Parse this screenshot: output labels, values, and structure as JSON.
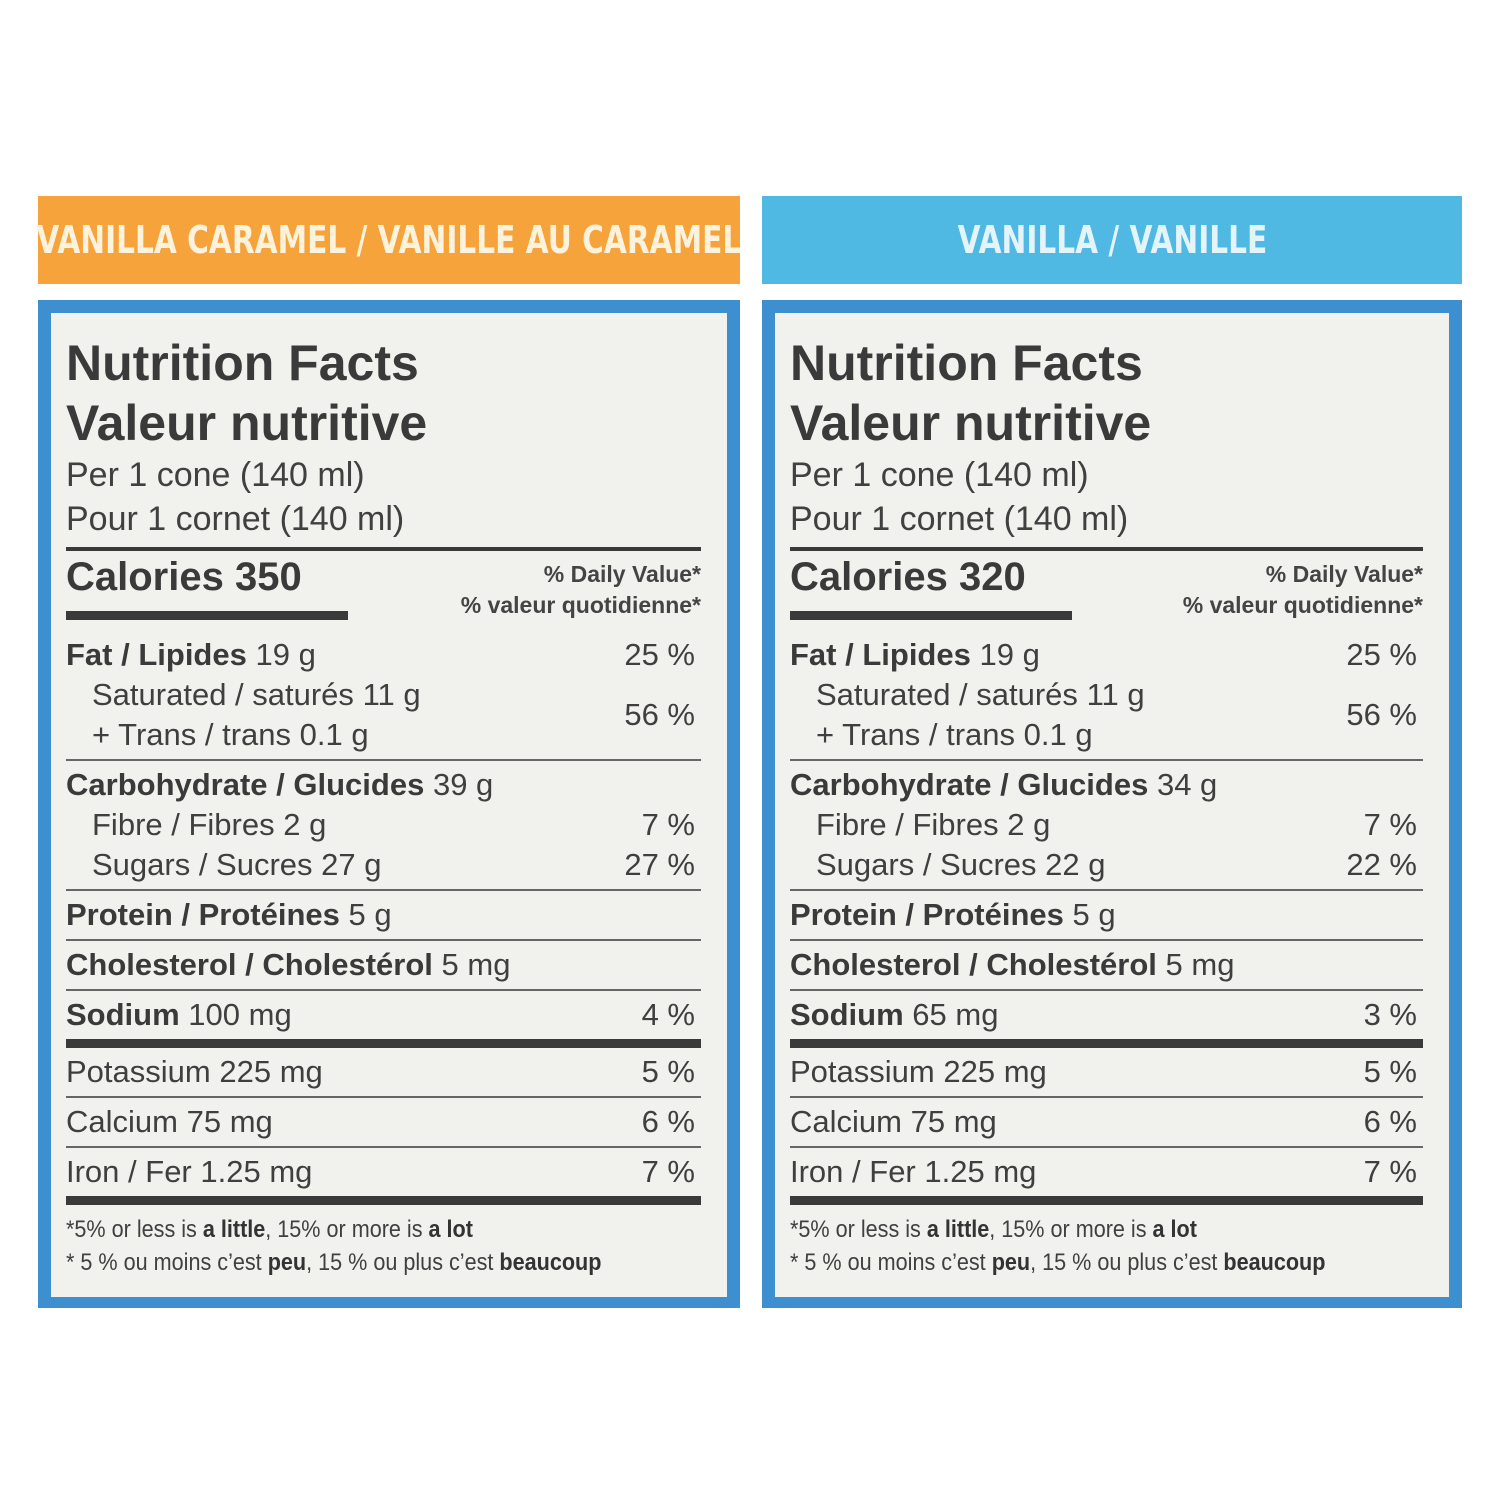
{
  "banners": {
    "left": "VANILLA CARAMEL / VANILLE AU CARAMEL",
    "right": "VANILLA / VANILLE"
  },
  "colors": {
    "left_banner": "#f6a33c",
    "right_banner": "#4fb8e3",
    "panel_border": "#3e8fcf",
    "panel_background": "#f1f1ee"
  },
  "common": {
    "title_en": "Nutrition Facts",
    "title_fr": "Valeur nutritive",
    "serving_en": "Per 1 cone (140 ml)",
    "serving_fr": "Pour 1 cornet (140 ml)",
    "dv_en": "% Daily Value*",
    "dv_fr": "% valeur quotidienne*",
    "fat_label": "Fat / Lipides",
    "saturated_label": "Saturated / saturés",
    "trans_label": "+ Trans / trans",
    "carb_label": "Carbohydrate / Glucides",
    "fibre_label": "Fibre / Fibres",
    "sugars_label": "Sugars / Sucres",
    "protein_label": "Protein / Protéines",
    "cholesterol_label": "Cholesterol / Cholestérol",
    "sodium_label": "Sodium",
    "potassium_label": "Potassium",
    "calcium_label": "Calcium",
    "iron_label": "Iron / Fer",
    "foot_en_1": "*5% or less is ",
    "foot_en_little": "a little",
    "foot_en_2": ", 15% or more is ",
    "foot_en_lot": "a lot",
    "foot_fr_1": "* 5 % ou moins c’est ",
    "foot_fr_peu": "peu",
    "foot_fr_2": ", 15 % ou plus c’est ",
    "foot_fr_beaucoup": "beaucoup"
  },
  "left": {
    "calories": "Calories 350",
    "fat": "19 g",
    "fat_pct": "25 %",
    "saturated": "11 g",
    "trans": "0.1 g",
    "sat_trans_pct": "56 %",
    "carb": "39 g",
    "fibre": "2 g",
    "fibre_pct": "7 %",
    "sugars": "27 g",
    "sugars_pct": "27 %",
    "protein": "5 g",
    "cholesterol": "5 mg",
    "sodium": "100 mg",
    "sodium_pct": "4 %",
    "potassium": "225 mg",
    "potassium_pct": "5 %",
    "calcium": "75 mg",
    "calcium_pct": "6 %",
    "iron": "1.25 mg",
    "iron_pct": "7 %"
  },
  "right": {
    "calories": "Calories 320",
    "fat": "19 g",
    "fat_pct": "25 %",
    "saturated": "11 g",
    "trans": "0.1 g",
    "sat_trans_pct": "56 %",
    "carb": "34 g",
    "fibre": "2 g",
    "fibre_pct": "7 %",
    "sugars": "22 g",
    "sugars_pct": "22 %",
    "protein": "5 g",
    "cholesterol": "5 mg",
    "sodium": "65 mg",
    "sodium_pct": "3 %",
    "potassium": "225 mg",
    "potassium_pct": "5 %",
    "calcium": "75 mg",
    "calcium_pct": "6 %",
    "iron": "1.25 mg",
    "iron_pct": "7 %"
  }
}
